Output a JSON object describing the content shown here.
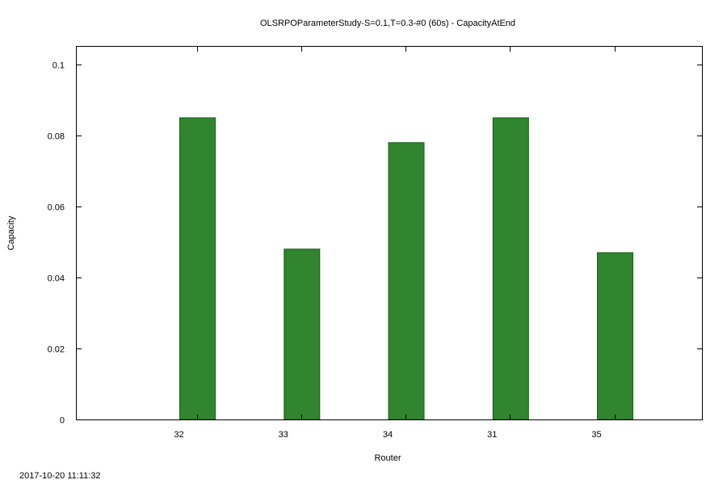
{
  "chart_data": {
    "type": "bar",
    "title": "OLSRPOParameterStudy-S=0.1,T=0.3-#0 (60s) - CapacityAtEnd",
    "xlabel": "Router",
    "ylabel": "Capacity",
    "categories": [
      "32",
      "33",
      "34",
      "31",
      "35"
    ],
    "values": [
      0.085,
      0.048,
      0.078,
      0.085,
      0.047
    ],
    "ylim": [
      0,
      0.105
    ],
    "yticks": [
      0,
      0.02,
      0.04,
      0.06,
      0.08,
      0.1
    ],
    "ytick_labels": [
      "0",
      "0.02",
      "0.04",
      "0.06",
      "0.08",
      "0.1"
    ],
    "bar_color": "#31852f",
    "grid": false
  },
  "footer": {
    "timestamp": "2017-10-20 11:11:32"
  }
}
